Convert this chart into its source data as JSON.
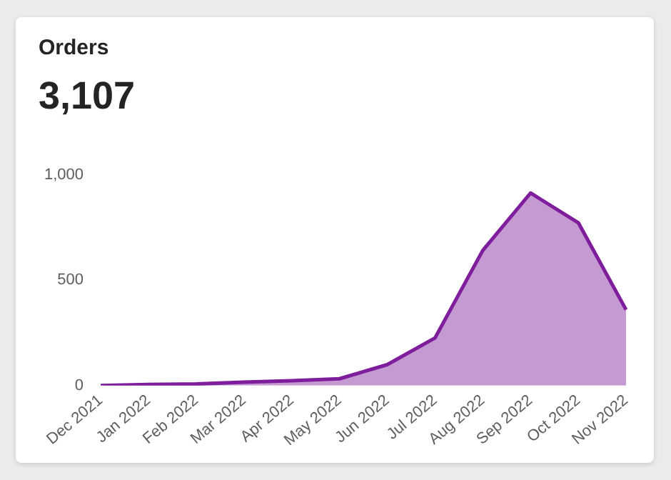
{
  "chart_data": {
    "type": "area",
    "title": "Orders",
    "subtitle": "3,107",
    "categories": [
      "Dec 2021",
      "Jan 2022",
      "Feb 2022",
      "Mar 2022",
      "Apr 2022",
      "May 2022",
      "Jun 2022",
      "Jul 2022",
      "Aug 2022",
      "Sep 2022",
      "Oct 2022",
      "Nov 2022"
    ],
    "series": [
      {
        "color": "#7e1e9c",
        "values": [
          0,
          5,
          7,
          16,
          23,
          32,
          99,
          226,
          642,
          915,
          774,
          360
        ]
      }
    ],
    "ylim": [
      0,
      1000
    ],
    "yticks": [
      0,
      500,
      {
        "value": 1000,
        "label": "1,000"
      }
    ],
    "grid": false,
    "legend": false
  }
}
